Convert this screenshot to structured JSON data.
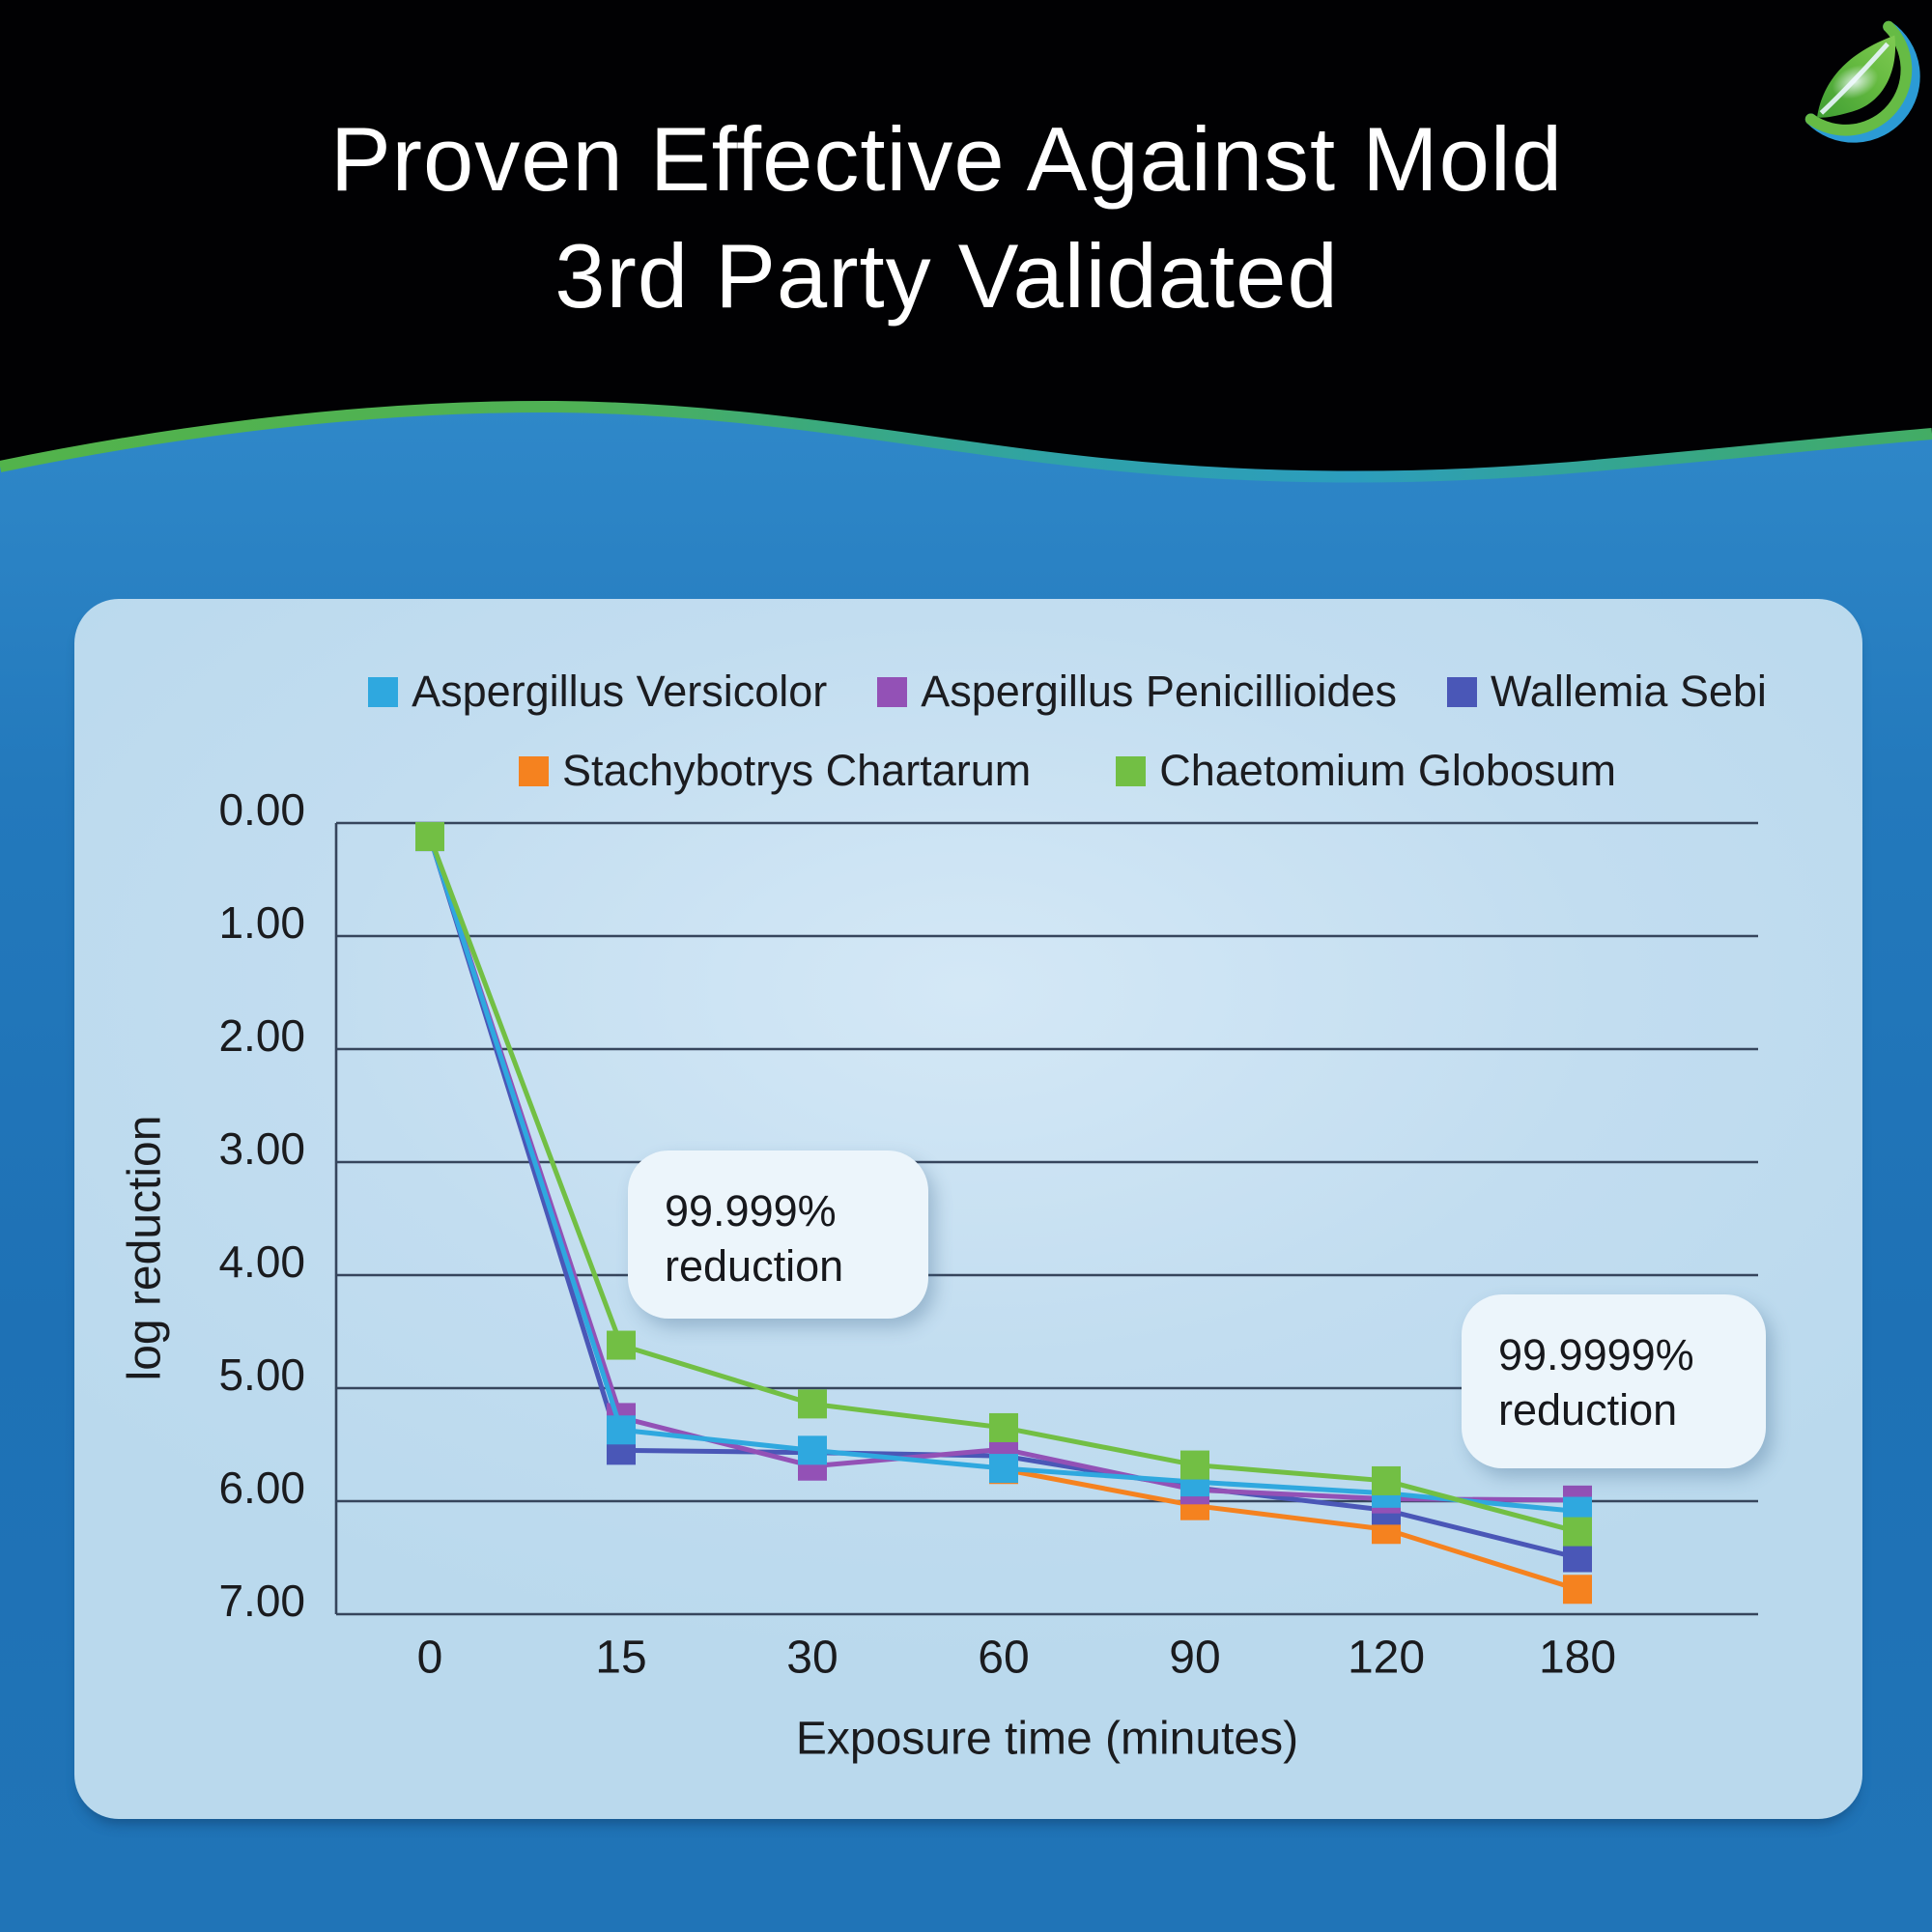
{
  "header": {
    "title_line1": "Proven Effective Against Mold",
    "title_line2": "3rd Party Validated",
    "logo_icon": "leaf-circle-logo"
  },
  "colors": {
    "background_black": "#010103",
    "body_blue_top": "#2f88c9",
    "body_blue_bottom": "#1e71b5",
    "wave_green": "#52b34b",
    "wave_teal": "#2c9dbe",
    "panel_blue": "#c2ddf0",
    "gridline": "#36455c",
    "text_dark": "#1a1b1e",
    "callout_bg": "#ecf5fb"
  },
  "chart_data": {
    "type": "line",
    "title": "",
    "xlabel": "Exposure time (minutes)",
    "ylabel": "log reduction",
    "categories": [
      "0",
      "15",
      "30",
      "60",
      "90",
      "120",
      "180"
    ],
    "y_ticks": [
      "0.00",
      "1.00",
      "2.00",
      "3.00",
      "4.00",
      "5.00",
      "6.00",
      "7.00"
    ],
    "ylim": [
      0,
      7
    ],
    "y_axis_inverted": true,
    "grid": true,
    "legend_position": "top",
    "marker": "square",
    "series": [
      {
        "name": "Aspergillus Versicolor",
        "color": "#2FA8DF",
        "values": [
          0.12,
          5.37,
          5.55,
          5.71,
          5.83,
          5.93,
          6.09
        ]
      },
      {
        "name": "Aspergillus Penicillioides",
        "color": "#9351B6",
        "values": [
          0.12,
          5.26,
          5.69,
          5.54,
          5.9,
          5.98,
          5.99
        ]
      },
      {
        "name": "Wallemia Sebi",
        "color": "#4A57B7",
        "values": [
          0.12,
          5.55,
          5.57,
          5.6,
          5.88,
          6.08,
          6.5
        ]
      },
      {
        "name": "Stachybotrys Chartarum",
        "color": "#F5821F",
        "values": [
          null,
          null,
          null,
          5.72,
          6.04,
          6.25,
          6.78
        ]
      },
      {
        "name": "Chaetomium Globosum",
        "color": "#72BF44",
        "values": [
          0.12,
          4.62,
          5.14,
          5.35,
          5.68,
          5.82,
          6.27
        ]
      }
    ],
    "annotations": [
      {
        "line1": "99.999%",
        "line2": "reduction"
      },
      {
        "line1": "99.9999%",
        "line2": "reduction"
      }
    ]
  }
}
